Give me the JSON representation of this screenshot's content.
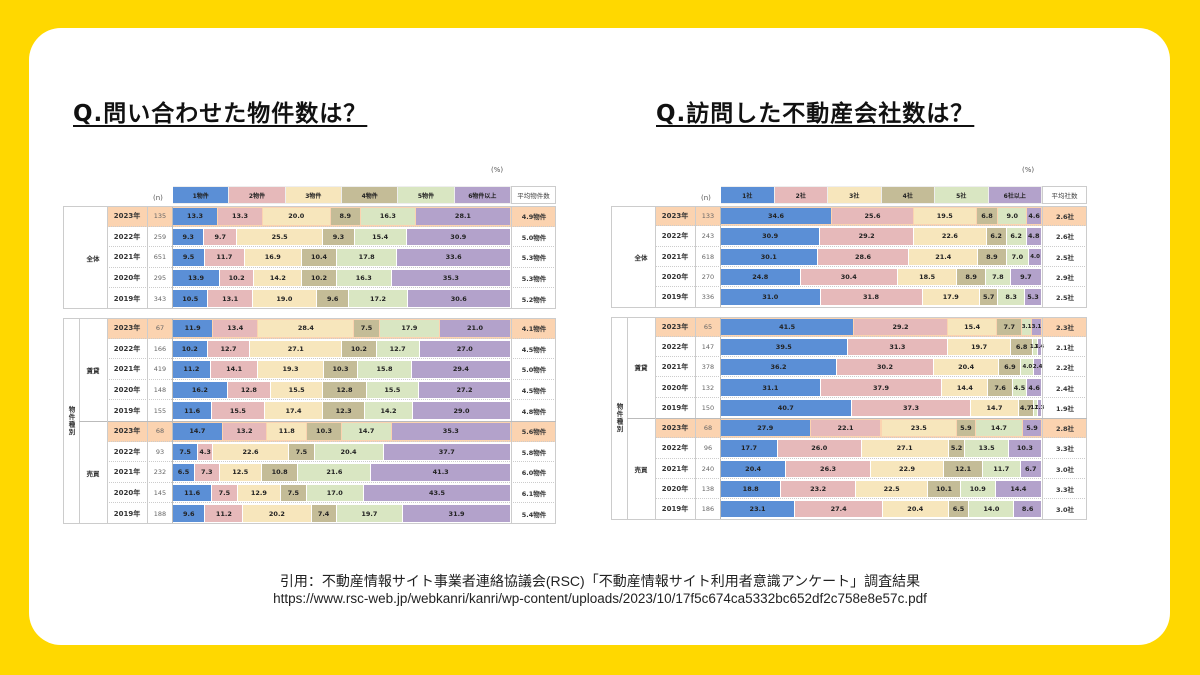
{
  "left_title": "Q.問い合わせた物件数は？",
  "right_title": "Q.訪問した不動産会社数は？",
  "citation": {
    "line1": "引用：不動産情報サイト事業者連絡協議会(RSC)「不動産情報サイト利用者意識アンケート」調査結果",
    "line2": "https://www.rsc-web.jp/webkanri/kanri/wp-content/uploads/2023/10/17f5c674ca5332bc652df2c758e8e57c.pdf"
  },
  "colors": [
    "#5B8FD6",
    "#E6B9BA",
    "#F7E6BC",
    "#C4BC97",
    "#D9E6C2",
    "#B3A2CB"
  ],
  "highlight_color": "#FBD3B0",
  "chart_data": [
    {
      "type": "bar",
      "stacked": true,
      "orientation": "horizontal",
      "unit_label": "(%)",
      "n_label": "(n)",
      "avg_header": "平均物件数",
      "legend": [
        "1物件",
        "2物件",
        "3物件",
        "4物件",
        "5物件",
        "6物件以上"
      ],
      "group_label_outer": "物件種別",
      "groups": [
        {
          "label": "全体",
          "rows": [
            {
              "year": "2023年",
              "n": "135",
              "values": [
                13.3,
                13.3,
                20.0,
                8.9,
                16.3,
                28.1
              ],
              "avg": "4.9物件",
              "highlight": true
            },
            {
              "year": "2022年",
              "n": "259",
              "values": [
                9.3,
                9.7,
                25.5,
                9.3,
                15.4,
                30.9
              ],
              "avg": "5.0物件"
            },
            {
              "year": "2021年",
              "n": "651",
              "values": [
                9.5,
                11.7,
                16.9,
                10.4,
                17.8,
                33.6
              ],
              "avg": "5.3物件"
            },
            {
              "year": "2020年",
              "n": "295",
              "values": [
                13.9,
                10.2,
                14.2,
                10.2,
                16.3,
                35.3
              ],
              "avg": "5.3物件"
            },
            {
              "year": "2019年",
              "n": "343",
              "values": [
                10.5,
                13.1,
                19.0,
                9.6,
                17.2,
                30.6
              ],
              "avg": "5.2物件"
            }
          ]
        },
        {
          "label": "賃貸",
          "rows": [
            {
              "year": "2023年",
              "n": "67",
              "values": [
                11.9,
                13.4,
                28.4,
                7.5,
                17.9,
                21.0
              ],
              "avg": "4.1物件",
              "highlight": true
            },
            {
              "year": "2022年",
              "n": "166",
              "values": [
                10.2,
                12.7,
                27.1,
                10.2,
                12.7,
                27.0
              ],
              "avg": "4.5物件"
            },
            {
              "year": "2021年",
              "n": "419",
              "values": [
                11.2,
                14.1,
                19.3,
                10.3,
                15.8,
                29.4
              ],
              "avg": "5.0物件"
            },
            {
              "year": "2020年",
              "n": "148",
              "values": [
                16.2,
                12.8,
                15.5,
                12.8,
                15.5,
                27.2
              ],
              "avg": "4.5物件"
            },
            {
              "year": "2019年",
              "n": "155",
              "values": [
                11.6,
                15.5,
                17.4,
                12.3,
                14.2,
                29.0
              ],
              "avg": "4.8物件"
            }
          ]
        },
        {
          "label": "売買",
          "rows": [
            {
              "year": "2023年",
              "n": "68",
              "values": [
                14.7,
                13.2,
                11.8,
                10.3,
                14.7,
                35.3
              ],
              "avg": "5.6物件",
              "highlight": true
            },
            {
              "year": "2022年",
              "n": "93",
              "values": [
                7.5,
                4.3,
                22.6,
                7.5,
                20.4,
                37.7
              ],
              "avg": "5.8物件"
            },
            {
              "year": "2021年",
              "n": "232",
              "values": [
                6.5,
                7.3,
                12.5,
                10.8,
                21.6,
                41.3
              ],
              "avg": "6.0物件"
            },
            {
              "year": "2020年",
              "n": "145",
              "values": [
                11.6,
                7.5,
                12.9,
                7.5,
                17.0,
                43.5
              ],
              "avg": "6.1物件"
            },
            {
              "year": "2019年",
              "n": "188",
              "values": [
                9.6,
                11.2,
                20.2,
                7.4,
                19.7,
                31.9
              ],
              "avg": "5.4物件"
            }
          ]
        }
      ]
    },
    {
      "type": "bar",
      "stacked": true,
      "orientation": "horizontal",
      "unit_label": "(%)",
      "n_label": "(n)",
      "avg_header": "平均社数",
      "legend": [
        "1社",
        "2社",
        "3社",
        "4社",
        "5社",
        "6社以上"
      ],
      "group_label_outer": "物件種別",
      "groups": [
        {
          "label": "全体",
          "rows": [
            {
              "year": "2023年",
              "n": "133",
              "values": [
                34.6,
                25.6,
                19.5,
                6.8,
                9.0,
                4.6
              ],
              "avg": "2.6社",
              "highlight": true
            },
            {
              "year": "2022年",
              "n": "243",
              "values": [
                30.9,
                29.2,
                22.6,
                6.2,
                6.2,
                4.8
              ],
              "avg": "2.6社"
            },
            {
              "year": "2021年",
              "n": "618",
              "values": [
                30.1,
                28.6,
                21.4,
                8.9,
                7.0,
                4.0
              ],
              "avg": "2.5社"
            },
            {
              "year": "2020年",
              "n": "270",
              "values": [
                24.8,
                30.4,
                18.5,
                8.9,
                7.8,
                9.7
              ],
              "avg": "2.9社"
            },
            {
              "year": "2019年",
              "n": "336",
              "values": [
                31.0,
                31.8,
                17.9,
                5.7,
                8.3,
                5.3
              ],
              "avg": "2.5社"
            }
          ]
        },
        {
          "label": "賃貸",
          "rows": [
            {
              "year": "2023年",
              "n": "65",
              "values": [
                41.5,
                29.2,
                15.4,
                7.7,
                3.1,
                3.1
              ],
              "avg": "2.3社",
              "highlight": true
            },
            {
              "year": "2022年",
              "n": "147",
              "values": [
                39.5,
                31.3,
                19.7,
                6.8,
                1.4,
                1.4
              ],
              "avg": "2.1社"
            },
            {
              "year": "2021年",
              "n": "378",
              "values": [
                36.2,
                30.2,
                20.4,
                6.9,
                4.0,
                2.4
              ],
              "avg": "2.2社"
            },
            {
              "year": "2020年",
              "n": "132",
              "values": [
                31.1,
                37.9,
                14.4,
                7.6,
                4.5,
                4.6
              ],
              "avg": "2.4社"
            },
            {
              "year": "2019年",
              "n": "150",
              "values": [
                40.7,
                37.3,
                14.7,
                4.7,
                1.3,
                1.3
              ],
              "avg": "1.9社"
            }
          ]
        },
        {
          "label": "売買",
          "rows": [
            {
              "year": "2023年",
              "n": "68",
              "values": [
                27.9,
                22.1,
                23.5,
                5.9,
                14.7,
                5.9
              ],
              "avg": "2.8社",
              "highlight": true
            },
            {
              "year": "2022年",
              "n": "96",
              "values": [
                17.7,
                26.0,
                27.1,
                5.2,
                13.5,
                10.3
              ],
              "avg": "3.3社"
            },
            {
              "year": "2021年",
              "n": "240",
              "values": [
                20.4,
                26.3,
                22.9,
                12.1,
                11.7,
                6.7
              ],
              "avg": "3.0社"
            },
            {
              "year": "2020年",
              "n": "138",
              "values": [
                18.8,
                23.2,
                22.5,
                10.1,
                10.9,
                14.4
              ],
              "avg": "3.3社"
            },
            {
              "year": "2019年",
              "n": "186",
              "values": [
                23.1,
                27.4,
                20.4,
                6.5,
                14.0,
                8.6
              ],
              "avg": "3.0社"
            }
          ]
        }
      ]
    }
  ]
}
